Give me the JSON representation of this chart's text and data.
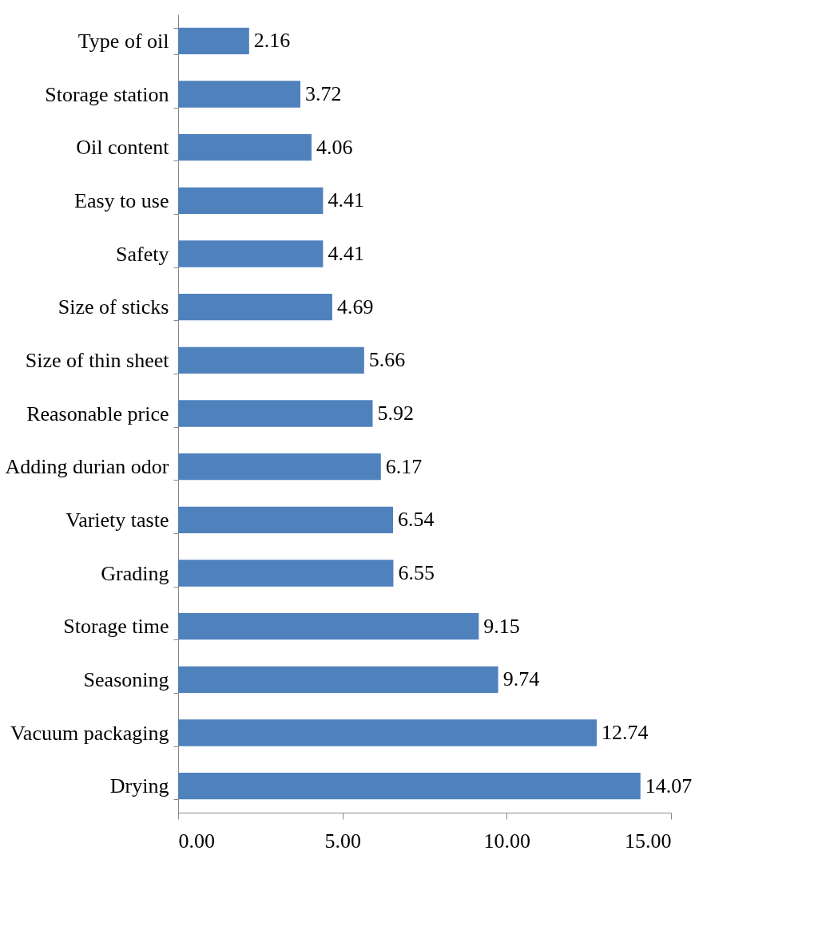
{
  "chart_data": {
    "type": "bar",
    "orientation": "horizontal",
    "categories": [
      "Type of oil",
      "Storage station",
      "Oil content",
      "Easy to use",
      "Safety",
      "Size of sticks",
      "Size of thin sheet",
      "Reasonable price",
      "Adding durian odor",
      "Variety taste",
      "Grading",
      "Storage time",
      "Seasoning",
      "Vacuum packaging",
      "Drying"
    ],
    "values": [
      2.16,
      3.72,
      4.06,
      4.41,
      4.41,
      4.69,
      5.66,
      5.92,
      6.17,
      6.54,
      6.55,
      9.15,
      9.74,
      12.74,
      14.07
    ],
    "color": "#4f81bd",
    "xlim": [
      0,
      15
    ],
    "xticks": [
      {
        "value": 0,
        "label": "0.00"
      },
      {
        "value": 5,
        "label": "5.00"
      },
      {
        "value": 10,
        "label": "10.00"
      },
      {
        "value": 15,
        "label": "15.00"
      }
    ],
    "data_labels": true
  }
}
